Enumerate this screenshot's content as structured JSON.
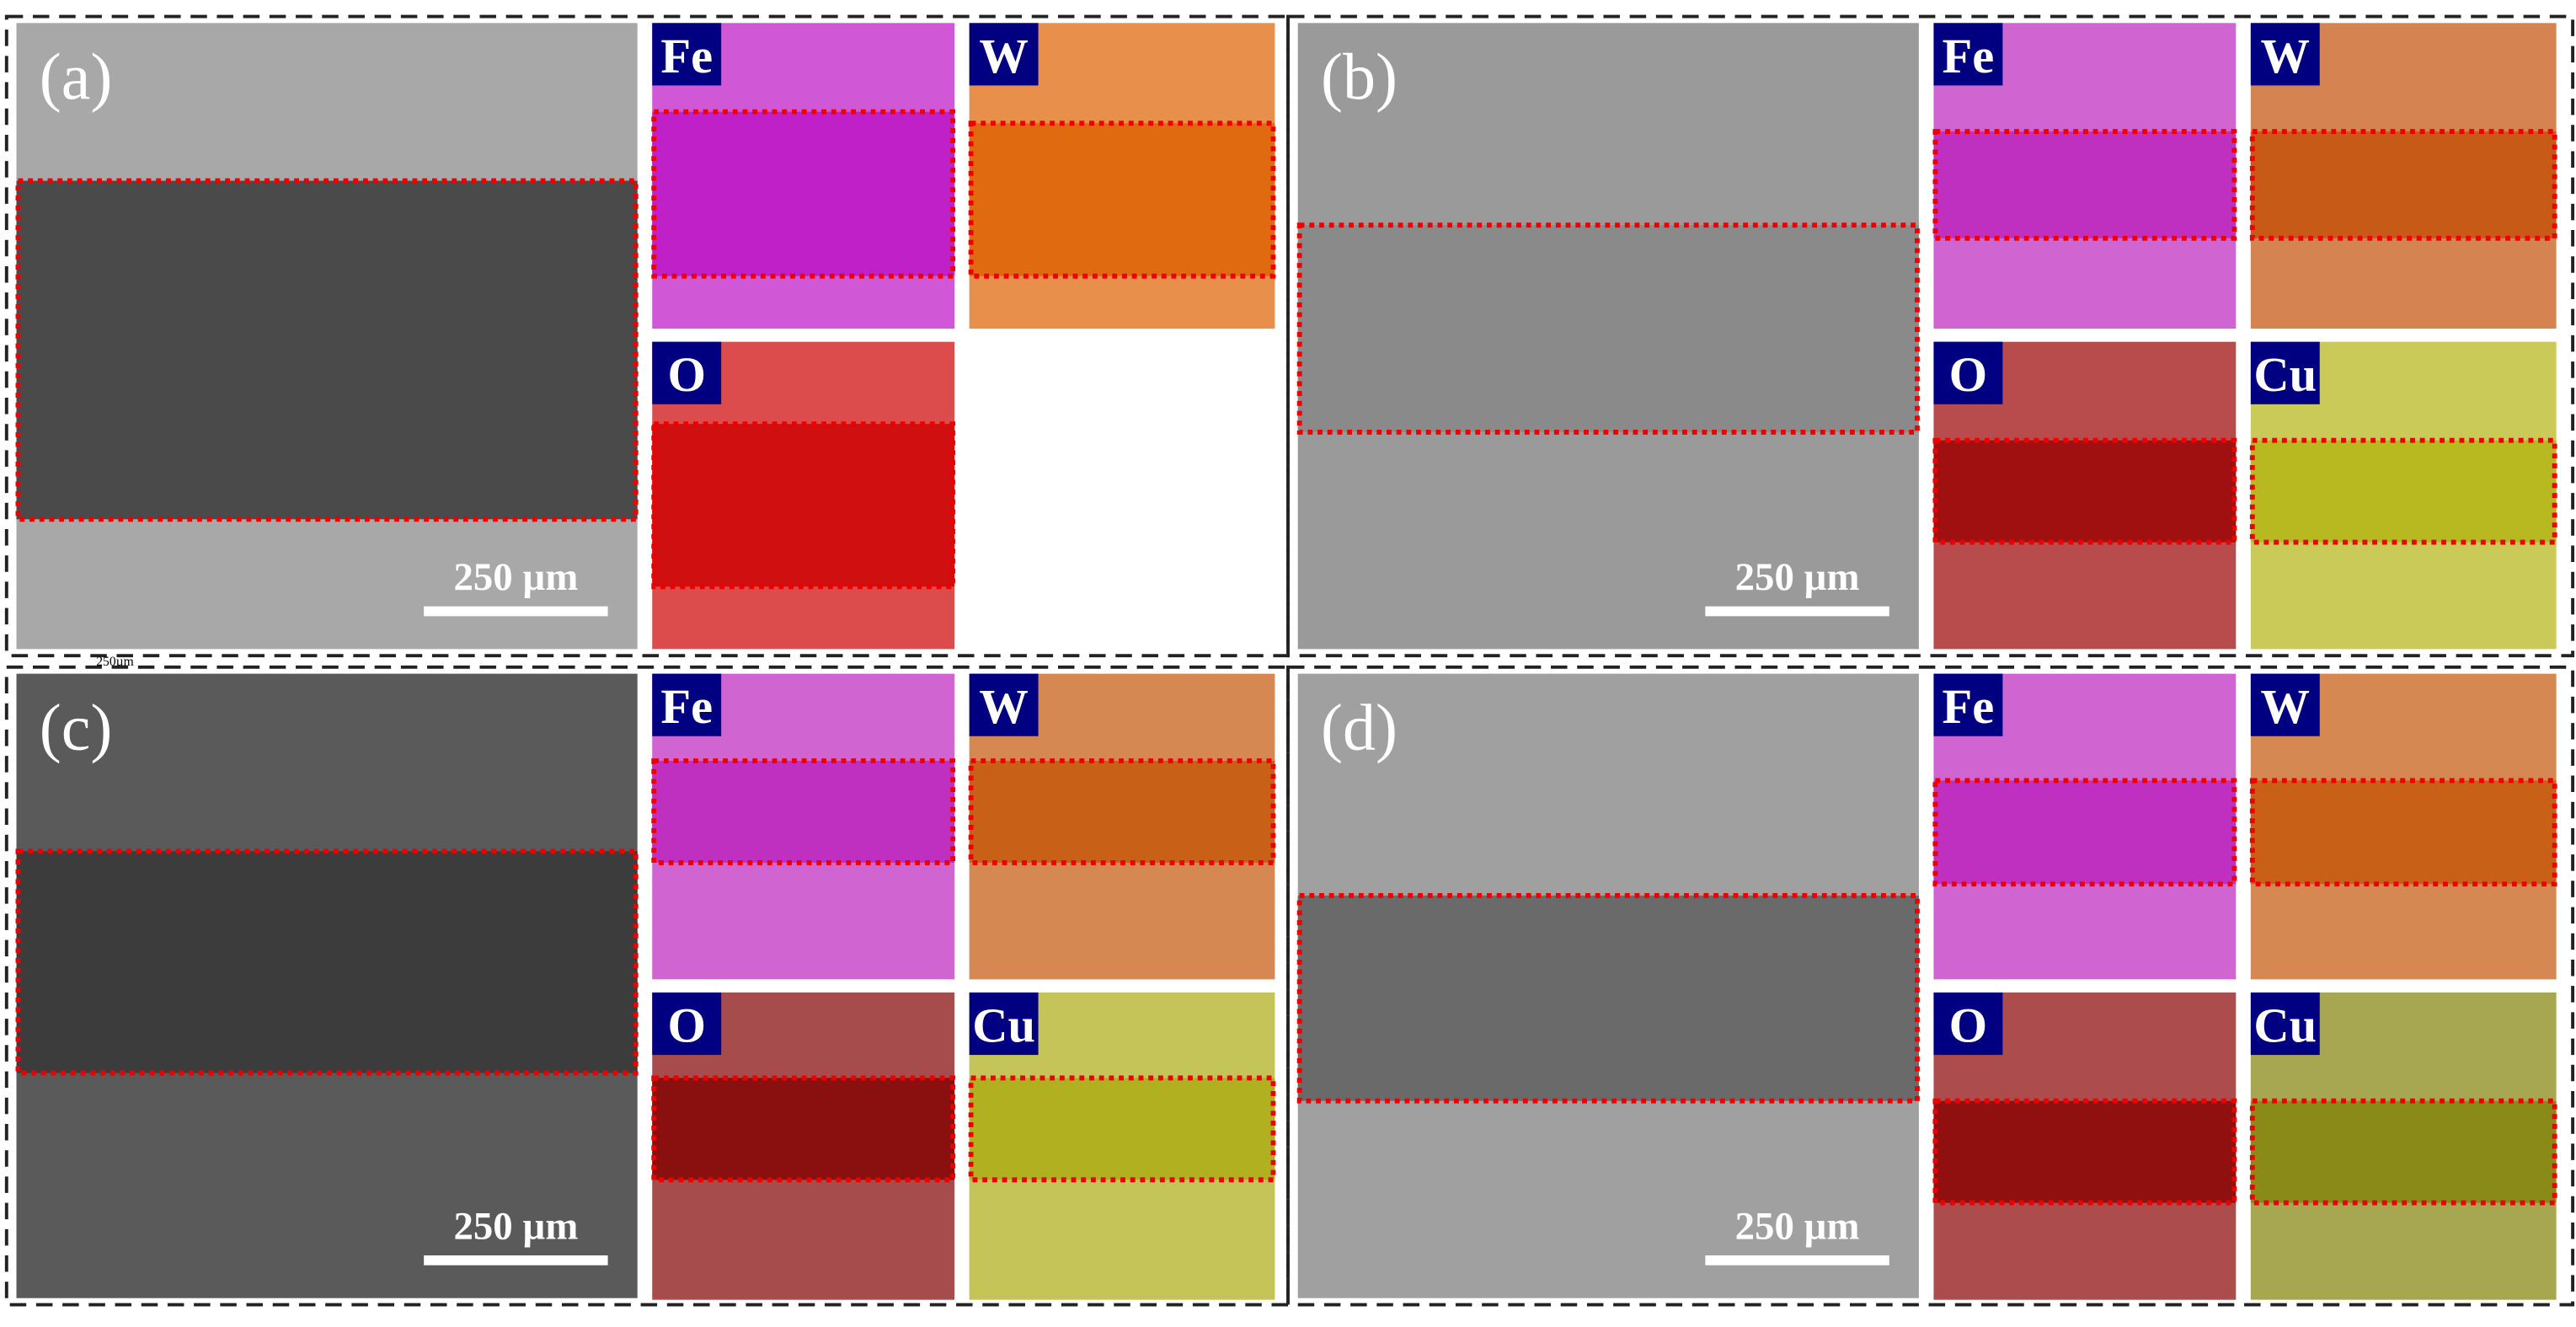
{
  "panels": [
    {
      "label": "(a)",
      "scale_bar": "250 µm",
      "sub_label": "250µm",
      "maps": [
        {
          "element": "Fe",
          "color": "#c020c8"
        },
        {
          "element": "W",
          "color": "#e06a10"
        },
        {
          "element": "O",
          "color": "#d01010"
        }
      ]
    },
    {
      "label": "(b)",
      "scale_bar": "250 µm",
      "maps": [
        {
          "element": "Fe",
          "color": "#c030c0"
        },
        {
          "element": "W",
          "color": "#c85a18"
        },
        {
          "element": "O",
          "color": "#a01010"
        },
        {
          "element": "Cu",
          "color": "#b8b820"
        }
      ]
    },
    {
      "label": "(c)",
      "scale_bar": "250 µm",
      "maps": [
        {
          "element": "Fe",
          "color": "#c030c0"
        },
        {
          "element": "W",
          "color": "#c86018"
        },
        {
          "element": "O",
          "color": "#8a1010"
        },
        {
          "element": "Cu",
          "color": "#b0b020"
        }
      ]
    },
    {
      "label": "(d)",
      "scale_bar": "250 µm",
      "maps": [
        {
          "element": "Fe",
          "color": "#c030c0"
        },
        {
          "element": "W",
          "color": "#c86018"
        },
        {
          "element": "O",
          "color": "#901010"
        },
        {
          "element": "Cu",
          "color": "#8a8a18"
        }
      ]
    }
  ]
}
